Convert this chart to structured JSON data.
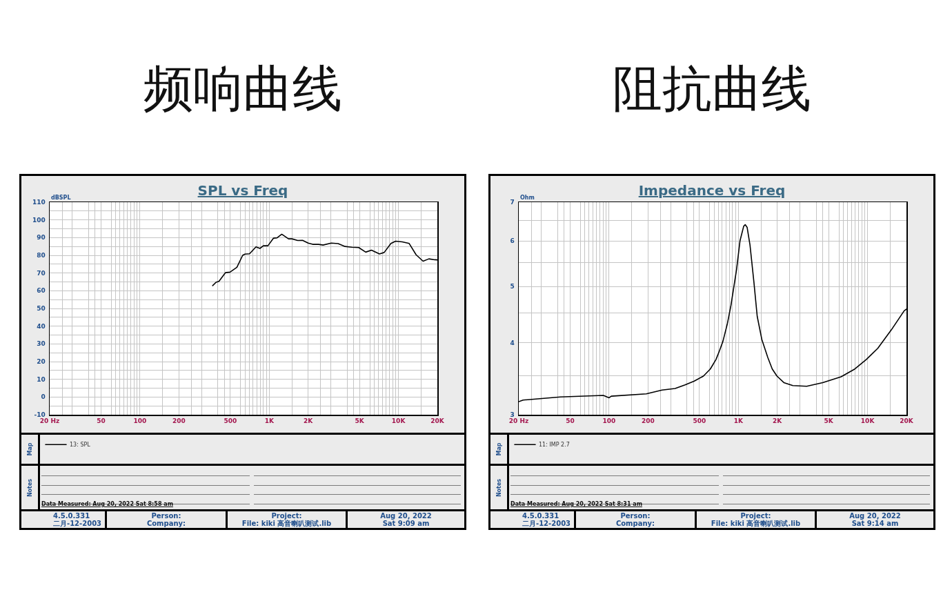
{
  "chart_data": [
    {
      "type": "line",
      "title": "频响曲线",
      "subtitle": "SPL vs Freq",
      "ylabel": "dBSPL",
      "annotations": [
        "Map",
        "Notes",
        "Data Measured: Aug 20, 2022 Sat 8:58 am",
        "4.5.0.331",
        "二月-12-2003",
        "Person:",
        "Company:",
        "Project:",
        "File: kiki 高音喇叭测试.lib",
        "Aug 20, 2022",
        "Sat 9:09 am"
      ],
      "x": [
        365,
        388,
        408,
        458,
        497,
        562,
        623,
        649,
        704,
        790,
        847,
        901,
        977,
        1080,
        1150,
        1250,
        1410,
        1500,
        1660,
        1810,
        2000,
        2170,
        2410,
        2610,
        3020,
        3410,
        3860,
        4360,
        4930,
        5580,
        6180,
        7130,
        7750,
        8750,
        9510,
        10700,
        12100,
        13700,
        15500,
        17200,
        19100,
        20000
      ],
      "series": [
        {
          "name": "13: SPL",
          "color": "#000000",
          "values": [
            62.9,
            64.8,
            65.3,
            70.2,
            70.5,
            73.2,
            80.0,
            80.7,
            80.9,
            84.8,
            83.9,
            85.4,
            85.4,
            89.7,
            89.9,
            91.9,
            89.3,
            89.3,
            88.4,
            88.5,
            86.9,
            86.2,
            86.2,
            85.8,
            86.9,
            86.6,
            85.0,
            84.6,
            84.4,
            81.8,
            82.9,
            80.8,
            81.6,
            86.7,
            88.0,
            87.6,
            86.7,
            80.3,
            76.7,
            78.0,
            77.5,
            77.4
          ]
        }
      ],
      "xlim": [
        20,
        20000
      ],
      "ylim": [
        -10,
        110
      ],
      "xticks": [
        {
          "value": 20,
          "label": "20 Hz"
        },
        {
          "value": 25,
          "label": null
        },
        {
          "value": 30,
          "label": null
        },
        {
          "value": 40,
          "label": null
        },
        {
          "value": 45,
          "label": null
        },
        50,
        {
          "value": 60,
          "label": null
        },
        {
          "value": 65,
          "label": null
        },
        {
          "value": 70,
          "label": null
        },
        {
          "value": 75,
          "label": null
        },
        {
          "value": 80,
          "label": null
        },
        {
          "value": 85,
          "label": null
        },
        {
          "value": 90,
          "label": null
        },
        {
          "value": 95,
          "label": null
        },
        100,
        {
          "value": 150,
          "label": null
        },
        200,
        {
          "value": 250,
          "label": null
        },
        {
          "value": 300,
          "label": null
        },
        {
          "value": 400,
          "label": null
        },
        {
          "value": 450,
          "label": null
        },
        500,
        {
          "value": 600,
          "label": null
        },
        {
          "value": 650,
          "label": null
        },
        {
          "value": 700,
          "label": null
        },
        {
          "value": 750,
          "label": null
        },
        {
          "value": 800,
          "label": null
        },
        {
          "value": 850,
          "label": null
        },
        {
          "value": 900,
          "label": null
        },
        {
          "value": 950,
          "label": null
        },
        {
          "value": 1000,
          "label": "1K"
        },
        {
          "value": 1500,
          "label": null
        },
        {
          "value": 2000,
          "label": "2K"
        },
        {
          "value": 2500,
          "label": null
        },
        {
          "value": 3000,
          "label": null
        },
        {
          "value": 4000,
          "label": null
        },
        {
          "value": 4500,
          "label": null
        },
        {
          "value": 5000,
          "label": "5K"
        },
        {
          "value": 6000,
          "label": null
        },
        {
          "value": 6500,
          "label": null
        },
        {
          "value": 7000,
          "label": null
        },
        {
          "value": 7500,
          "label": null
        },
        {
          "value": 8000,
          "label": null
        },
        {
          "value": 8500,
          "label": null
        },
        {
          "value": 9000,
          "label": null
        },
        {
          "value": 9500,
          "label": null
        },
        {
          "value": 10000,
          "label": "10K"
        },
        {
          "value": 15000,
          "label": null
        },
        {
          "value": 20000,
          "label": "20K"
        }
      ],
      "yticks": [
        -10,
        {
          "value": -5,
          "label": null
        },
        0,
        {
          "value": 5,
          "label": null
        },
        10,
        {
          "value": 15,
          "label": null
        },
        20,
        {
          "value": 25,
          "label": null
        },
        30,
        {
          "value": 35,
          "label": null
        },
        40,
        {
          "value": 45,
          "label": null
        },
        50,
        {
          "value": 55,
          "label": null
        },
        60,
        {
          "value": 65,
          "label": null
        },
        70,
        {
          "value": 75,
          "label": null
        },
        80,
        {
          "value": 85,
          "label": null
        },
        90,
        {
          "value": 95,
          "label": null
        },
        100,
        {
          "value": 105,
          "label": null
        },
        110
      ],
      "log": "x",
      "grid": true,
      "legend": "bottom left",
      "line_style": "solid"
    },
    {
      "type": "line",
      "title": "阻抗曲线",
      "subtitle": "Impedance vs Freq",
      "ylabel": "Ohm",
      "annotations": [
        "Map",
        "Notes",
        "Data Measured: Aug 20, 2022 Sat 8:31 am",
        "4.5.0.331",
        "二月-12-2003",
        "Person:",
        "Company:",
        "Project:",
        "File: kiki 高音喇叭测试.lib",
        "Aug 20, 2022",
        "Sat 9:14 am"
      ],
      "x": [
        20,
        21.6,
        25.2,
        41.9,
        90.3,
        100,
        104,
        194,
        257,
        324,
        387,
        456,
        537,
        607,
        672,
        714,
        760,
        824,
        877,
        971,
        1030,
        1100,
        1130,
        1170,
        1230,
        1320,
        1400,
        1520,
        1690,
        1830,
        1990,
        2250,
        2640,
        3380,
        4500,
        6240,
        7970,
        9790,
        12000,
        15300,
        19200,
        20000
      ],
      "series": [
        {
          "name": "11: IMP 2.7",
          "color": "#000000",
          "values": [
            3.16,
            3.18,
            3.19,
            3.22,
            3.24,
            3.21,
            3.23,
            3.26,
            3.31,
            3.33,
            3.38,
            3.43,
            3.5,
            3.6,
            3.74,
            3.87,
            4.02,
            4.32,
            4.64,
            5.37,
            6.0,
            6.36,
            6.4,
            6.33,
            5.91,
            5.09,
            4.44,
            4.05,
            3.77,
            3.6,
            3.5,
            3.41,
            3.37,
            3.36,
            3.41,
            3.49,
            3.6,
            3.74,
            3.91,
            4.21,
            4.54,
            4.57
          ]
        }
      ],
      "xlim": [
        20,
        20000
      ],
      "ylim": [
        3,
        7
      ],
      "xticks": [
        {
          "value": 20,
          "label": "20 Hz"
        },
        {
          "value": 25,
          "label": null
        },
        {
          "value": 30,
          "label": null
        },
        {
          "value": 40,
          "label": null
        },
        {
          "value": 45,
          "label": null
        },
        50,
        {
          "value": 60,
          "label": null
        },
        {
          "value": 65,
          "label": null
        },
        {
          "value": 70,
          "label": null
        },
        {
          "value": 75,
          "label": null
        },
        {
          "value": 80,
          "label": null
        },
        {
          "value": 85,
          "label": null
        },
        {
          "value": 90,
          "label": null
        },
        {
          "value": 95,
          "label": null
        },
        100,
        {
          "value": 150,
          "label": null
        },
        200,
        {
          "value": 250,
          "label": null
        },
        {
          "value": 300,
          "label": null
        },
        {
          "value": 400,
          "label": null
        },
        {
          "value": 450,
          "label": null
        },
        500,
        {
          "value": 600,
          "label": null
        },
        {
          "value": 650,
          "label": null
        },
        {
          "value": 700,
          "label": null
        },
        {
          "value": 750,
          "label": null
        },
        {
          "value": 800,
          "label": null
        },
        {
          "value": 850,
          "label": null
        },
        {
          "value": 900,
          "label": null
        },
        {
          "value": 950,
          "label": null
        },
        {
          "value": 1000,
          "label": "1K"
        },
        {
          "value": 1500,
          "label": null
        },
        {
          "value": 2000,
          "label": "2K"
        },
        {
          "value": 2500,
          "label": null
        },
        {
          "value": 3000,
          "label": null
        },
        {
          "value": 4000,
          "label": null
        },
        {
          "value": 4500,
          "label": null
        },
        {
          "value": 5000,
          "label": "5K"
        },
        {
          "value": 6000,
          "label": null
        },
        {
          "value": 6500,
          "label": null
        },
        {
          "value": 7000,
          "label": null
        },
        {
          "value": 7500,
          "label": null
        },
        {
          "value": 8000,
          "label": null
        },
        {
          "value": 8500,
          "label": null
        },
        {
          "value": 9000,
          "label": null
        },
        {
          "value": 9500,
          "label": null
        },
        {
          "value": 10000,
          "label": "10K"
        },
        {
          "value": 15000,
          "label": null
        },
        {
          "value": 20000,
          "label": "20K"
        }
      ],
      "yticks": [
        3,
        {
          "value": 3.5,
          "label": null
        },
        4,
        {
          "value": 4.5,
          "label": null
        },
        5,
        {
          "value": 5.5,
          "label": null
        },
        6,
        {
          "value": 6.5,
          "label": null
        },
        7
      ],
      "log": "xy",
      "grid": true,
      "legend": "bottom left",
      "line_style": "solid"
    }
  ]
}
